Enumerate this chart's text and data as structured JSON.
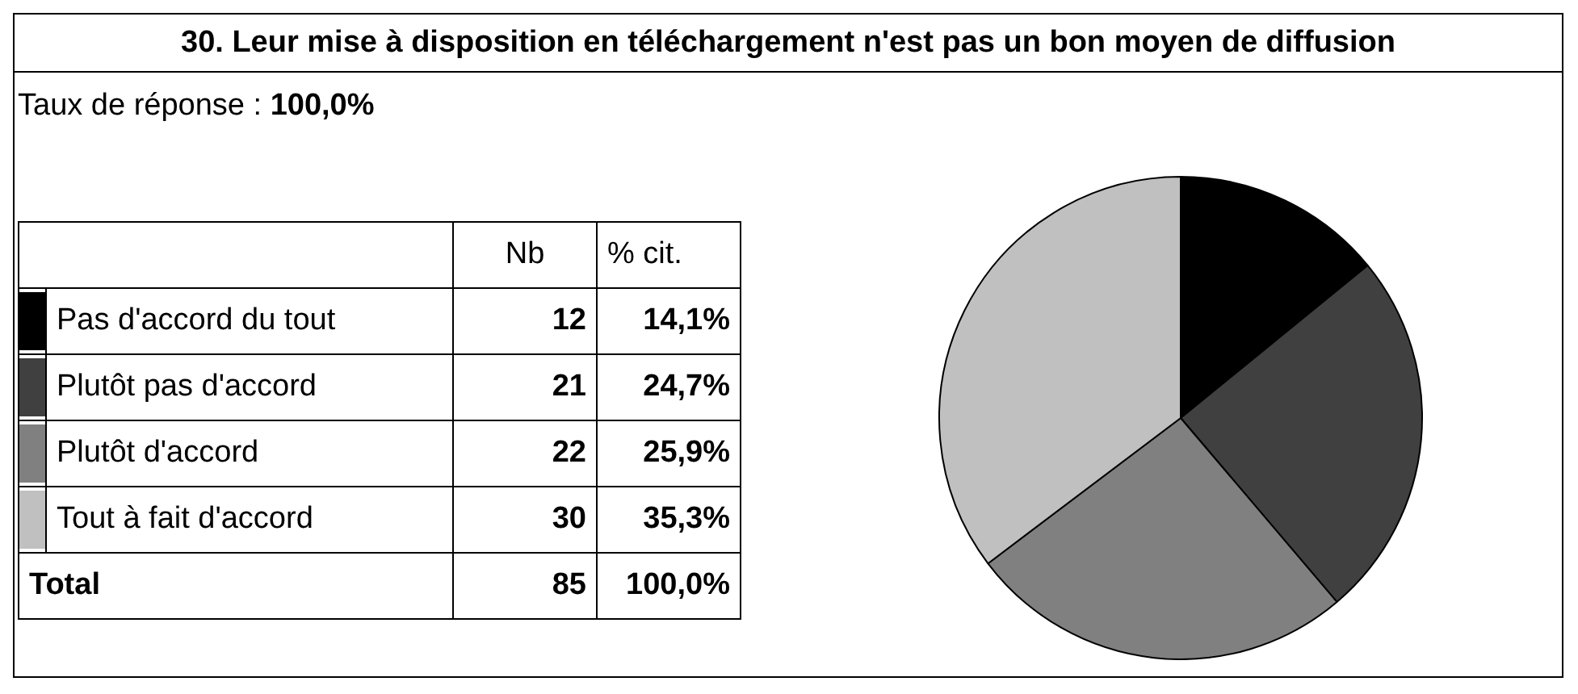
{
  "chart_data": {
    "type": "pie",
    "title": "30. Leur mise à disposition en téléchargement n'est pas un bon moyen de diffusion",
    "subtitle": "Taux de réponse : 100,0%",
    "categories": [
      "Pas d'accord du tout",
      "Plutôt pas d'accord",
      "Plutôt d'accord",
      "Tout à fait d'accord"
    ],
    "values": [
      14.1,
      24.7,
      25.9,
      35.3
    ],
    "value_labels": [
      "14,1%",
      "24,7%",
      "25,9%",
      "35,3%"
    ],
    "colors": [
      "#000000",
      "#404040",
      "#808080",
      "#c0c0c0"
    ],
    "legend": "left",
    "totals": [
      "85",
      "100,0%"
    ],
    "annotations": [
      "Nb",
      "% cit.",
      "Total",
      "12",
      "21",
      "22",
      "30"
    ]
  }
}
